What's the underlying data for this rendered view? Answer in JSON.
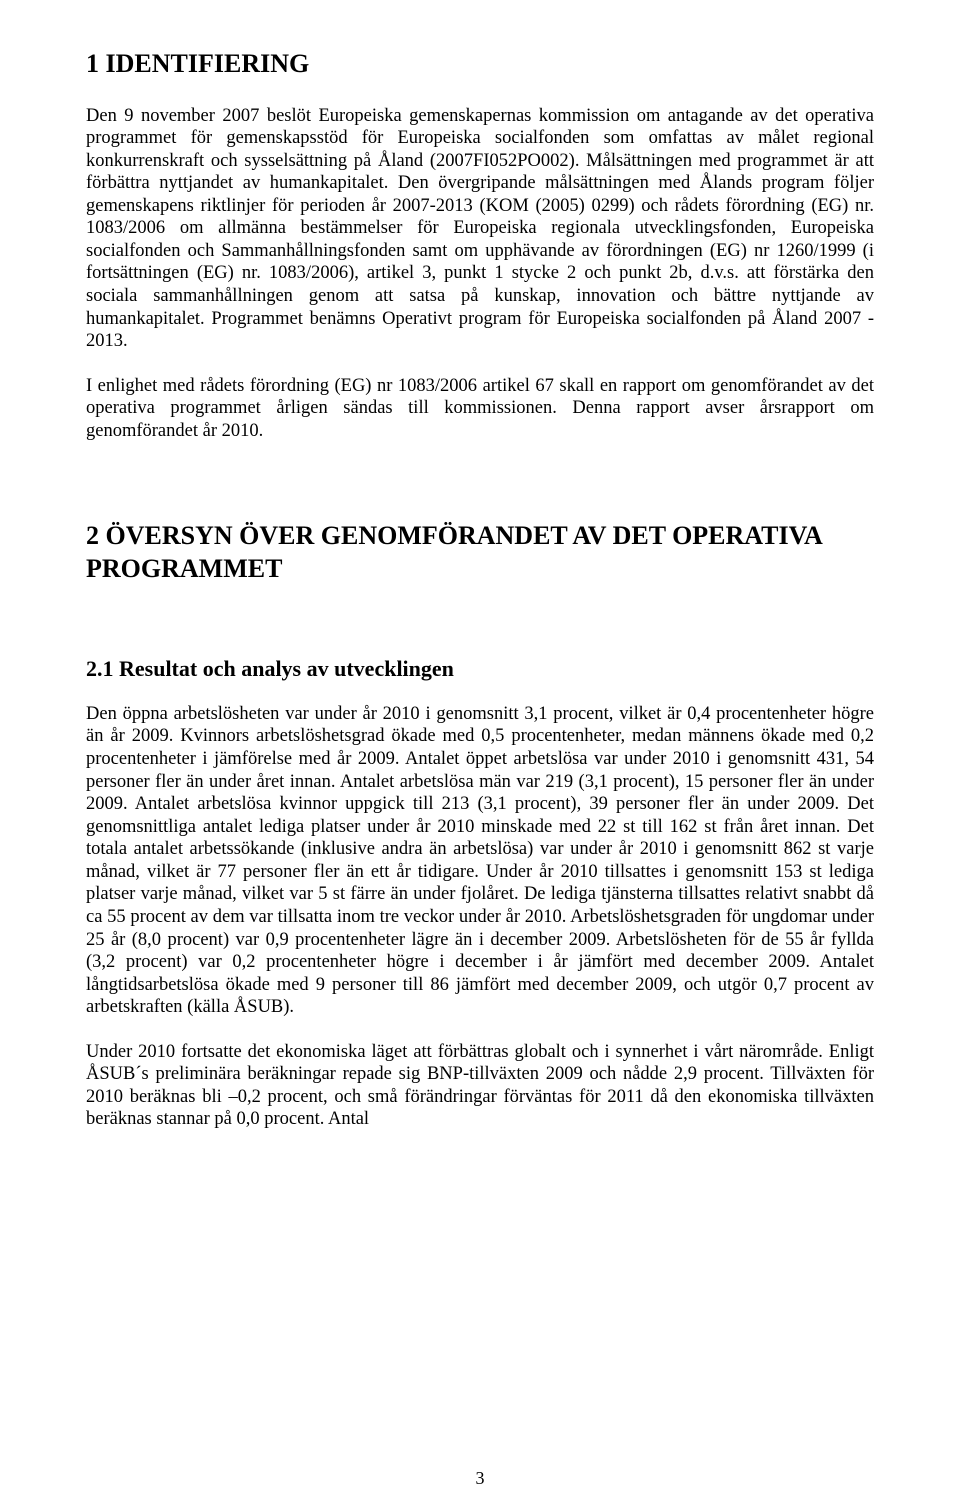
{
  "section1": {
    "heading": "1 IDENTIFIERING",
    "p1": "Den 9 november 2007 beslöt Europeiska gemenskapernas kommission om antagande av det operativa programmet för gemenskapsstöd för Europeiska socialfonden som omfattas av målet regional konkurrenskraft och sysselsättning på Åland (2007FI052PO002). Målsättningen med programmet är att förbättra nyttjandet av humankapitalet. Den övergripande målsättningen med Ålands program följer gemenskapens riktlinjer för perioden år 2007-2013 (KOM (2005) 0299) och rådets förordning (EG) nr. 1083/2006 om allmänna bestämmelser för Europeiska regionala utvecklingsfonden, Europeiska socialfonden och Sammanhållningsfonden samt om upphävande av förordningen (EG) nr 1260/1999 (i fortsättningen (EG) nr. 1083/2006), artikel 3, punkt 1 stycke 2 och punkt 2b, d.v.s. att förstärka den sociala sammanhållningen genom att satsa på kunskap, innovation och bättre nyttjande av humankapitalet. Programmet benämns Operativt program för Europeiska socialfonden på Åland 2007 - 2013.",
    "p2": "I enlighet med rådets förordning (EG) nr 1083/2006 artikel 67 skall en rapport om genomförandet av det operativa programmet årligen sändas till kommissionen. Denna rapport avser årsrapport om genomförandet år 2010."
  },
  "section2": {
    "heading": "2 ÖVERSYN ÖVER GENOMFÖRANDET AV DET OPERATIVA PROGRAMMET",
    "sub21": {
      "heading": "2.1 Resultat och analys av utvecklingen",
      "p1": "Den öppna arbetslösheten var under år 2010 i genomsnitt 3,1 procent, vilket är 0,4 procentenheter högre än år 2009. Kvinnors arbetslöshetsgrad ökade med 0,5 procentenheter, medan männens ökade med 0,2 procentenheter i jämförelse med år 2009. Antalet öppet arbetslösa var under 2010 i genomsnitt 431, 54 personer fler än under året innan. Antalet arbetslösa män var 219 (3,1 procent), 15 personer fler än under 2009. Antalet arbetslösa kvinnor uppgick till 213 (3,1 procent), 39 personer fler än under 2009. Det genomsnittliga antalet lediga platser under år 2010 minskade med 22 st till 162 st från året innan. Det totala antalet arbetssökande (inklusive andra än arbetslösa) var under år 2010 i genomsnitt 862 st varje månad, vilket är 77 personer fler än ett år tidigare. Under år 2010 tillsattes i genomsnitt 153 st lediga platser varje månad, vilket var 5 st färre än under fjolåret. De lediga tjänsterna tillsattes relativt snabbt då ca 55 procent av dem var tillsatta inom tre veckor under år 2010. Arbetslöshetsgraden för ungdomar under 25 år (8,0 procent) var 0,9 procentenheter lägre än i december 2009. Arbetslösheten för de 55 år fyllda (3,2 procent) var 0,2 procentenheter högre i december i år jämfört med december 2009. Antalet långtidsarbetslösa ökade med 9 personer till 86 jämfört med december 2009, och utgör 0,7 procent av arbetskraften (källa ÅSUB).",
      "p2": "Under 2010 fortsatte det ekonomiska läget att förbättras globalt och i synnerhet i vårt närområde. Enligt ÅSUB´s preliminära beräkningar repade sig BNP-tillväxten 2009 och nådde 2,9 procent. Tillväxten för 2010 beräknas bli –0,2 procent, och små förändringar förväntas för 2011 då den ekonomiska tillväxten beräknas stannar på 0,0 procent. Antal"
    }
  },
  "pageNumber": "3"
}
